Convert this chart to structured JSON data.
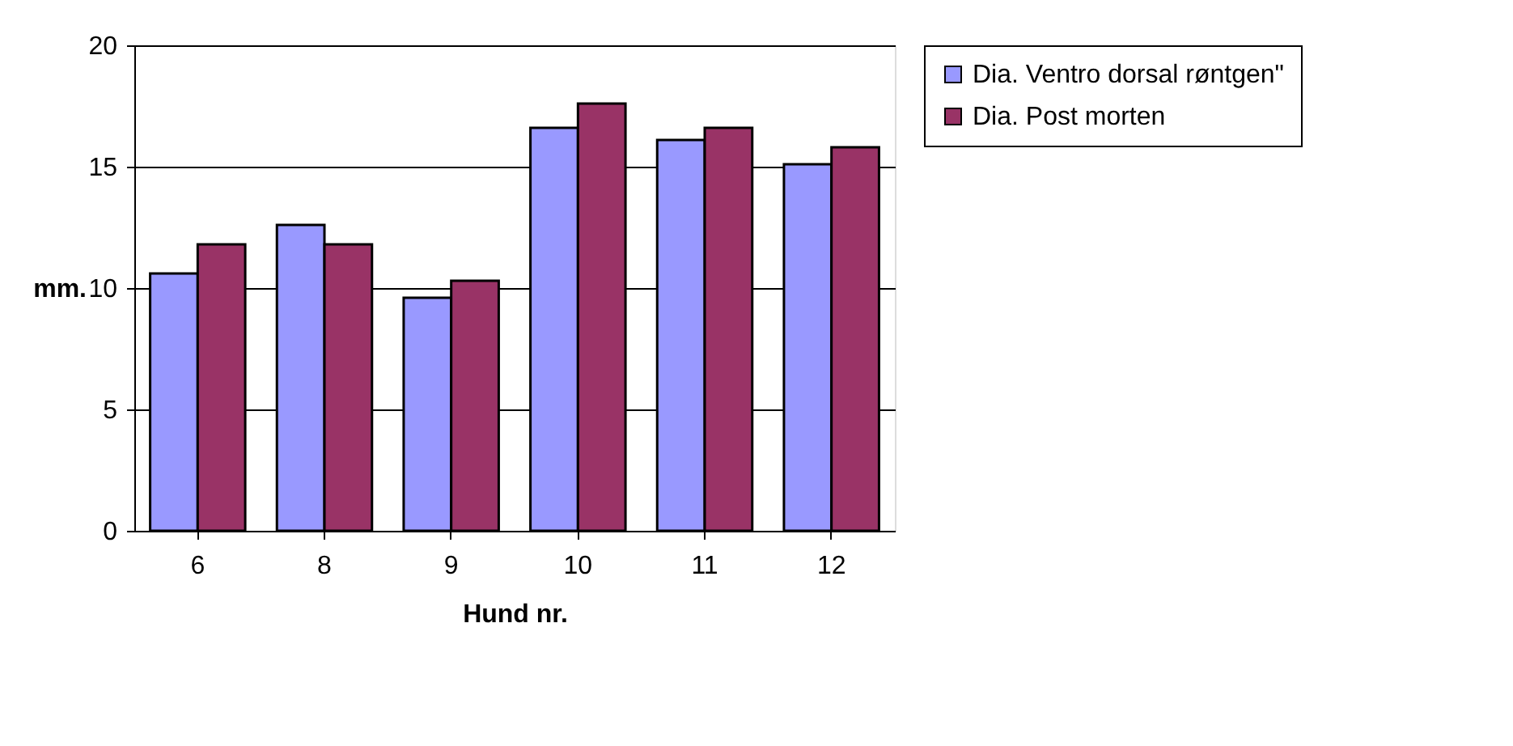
{
  "chart_data": {
    "type": "bar",
    "xlabel": "Hund nr.",
    "ylabel": "mm.",
    "categories": [
      "6",
      "8",
      "9",
      "10",
      "11",
      "12"
    ],
    "series": [
      {
        "name": "Dia. Ventro dorsal røntgen\"",
        "color": "#9999ff",
        "values": [
          10.6,
          12.6,
          9.6,
          16.6,
          16.1,
          15.1
        ]
      },
      {
        "name": "Dia. Post morten",
        "color": "#993366",
        "values": [
          11.8,
          11.8,
          10.3,
          17.6,
          16.6,
          15.8
        ]
      }
    ],
    "ylim": [
      0,
      20
    ],
    "yticks": [
      0,
      5,
      10,
      15,
      20
    ],
    "grid": "y",
    "legend": "right"
  }
}
